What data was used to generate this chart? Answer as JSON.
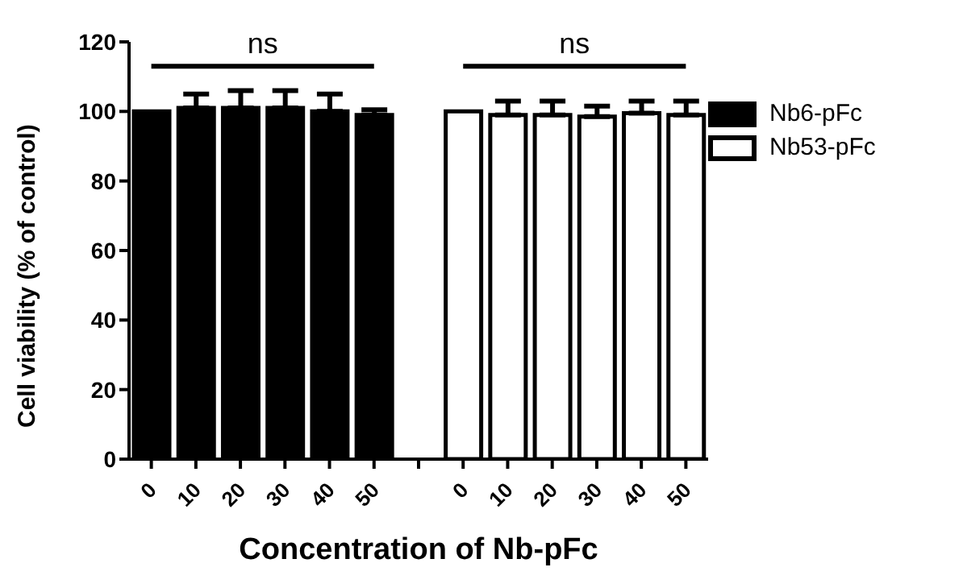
{
  "chart_data": {
    "type": "bar",
    "xlabel": "Concentration of Nb-pFc",
    "ylabel": "Cell viability (% of control)",
    "categories": [
      "0",
      "10",
      "20",
      "30",
      "40",
      "50",
      null,
      "0",
      "10",
      "20",
      "30",
      "40",
      "50"
    ],
    "series": [
      {
        "name": "Nb6-pFc",
        "color": "#000000",
        "values": [
          100,
          101,
          101,
          101,
          100,
          99,
          null,
          null,
          null,
          null,
          null,
          null,
          null
        ],
        "errors": [
          null,
          [
            101,
            105
          ],
          [
            101,
            106
          ],
          [
            101,
            106
          ],
          [
            100,
            105
          ],
          [
            99,
            100.5
          ],
          null,
          null,
          null,
          null,
          null,
          null,
          null
        ]
      },
      {
        "name": "Nb53-pFc",
        "color": "#ffffff",
        "values": [
          null,
          null,
          null,
          null,
          null,
          null,
          null,
          100,
          99,
          99,
          98.5,
          99.5,
          99
        ],
        "errors": [
          null,
          null,
          null,
          null,
          null,
          null,
          null,
          null,
          [
            99,
            103
          ],
          [
            99,
            103
          ],
          [
            98.5,
            101.5
          ],
          [
            99.5,
            103
          ],
          [
            99,
            103
          ]
        ]
      }
    ],
    "ylim": [
      0,
      120
    ],
    "yticks": [
      0,
      20,
      40,
      60,
      80,
      100,
      120
    ],
    "annotations": [
      "ns",
      "ns"
    ],
    "legend": "top right"
  }
}
